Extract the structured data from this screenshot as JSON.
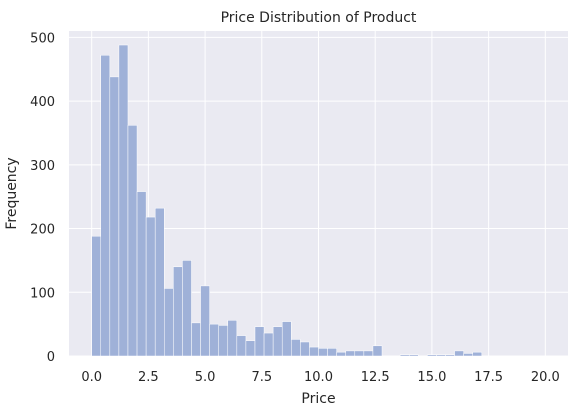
{
  "chart_data": {
    "type": "bar",
    "title": "Price Distribution of Product",
    "xlabel": "Price",
    "ylabel": "Frequency",
    "xlim": [
      -1.0,
      21.0
    ],
    "ylim": [
      0,
      510
    ],
    "xticks": [
      0.0,
      2.5,
      5.0,
      7.5,
      10.0,
      12.5,
      15.0,
      17.5,
      20.0
    ],
    "xtick_labels": [
      "0.0",
      "2.5",
      "5.0",
      "7.5",
      "10.0",
      "12.5",
      "15.0",
      "17.5",
      "20.0"
    ],
    "yticks": [
      0,
      100,
      200,
      300,
      400,
      500
    ],
    "ytick_labels": [
      "0",
      "100",
      "200",
      "300",
      "400",
      "500"
    ],
    "grid": true,
    "bin_edges": [
      0.0,
      0.4,
      0.8,
      1.2,
      1.6,
      2.0,
      2.4,
      2.8,
      3.2,
      3.6,
      4.0,
      4.4,
      4.8,
      5.2,
      5.6,
      6.0,
      6.4,
      6.8,
      7.2,
      7.6,
      8.0,
      8.4,
      8.8,
      9.2,
      9.6,
      10.0,
      10.4,
      10.8,
      11.2,
      11.6,
      12.0,
      12.4,
      12.8,
      13.2,
      13.6,
      14.0,
      14.4,
      14.8,
      15.2,
      15.6,
      16.0,
      16.4,
      16.8,
      17.2,
      17.6,
      18.0,
      18.4,
      18.8,
      19.2,
      19.6,
      20.0
    ],
    "values": [
      188,
      472,
      438,
      488,
      362,
      258,
      218,
      232,
      106,
      140,
      150,
      52,
      110,
      50,
      48,
      56,
      32,
      24,
      46,
      36,
      46,
      54,
      26,
      22,
      14,
      12,
      12,
      6,
      8,
      8,
      8,
      16,
      0,
      0,
      2,
      2,
      0,
      2,
      2,
      2,
      8,
      4,
      6,
      0,
      0,
      0,
      0,
      0,
      0,
      0
    ],
    "colors": {
      "bar": "#9fb1d8",
      "plot_bg": "#eaeaf2",
      "grid": "#ffffff",
      "text": "#262626"
    }
  }
}
